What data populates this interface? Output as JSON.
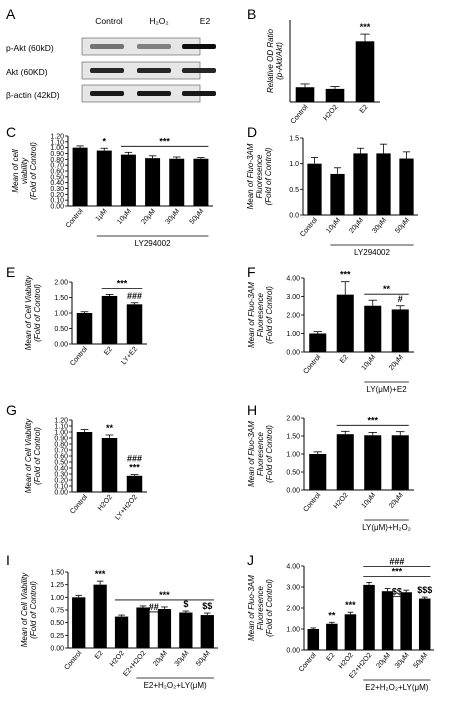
{
  "panel_labels": {
    "A": "A",
    "B": "B",
    "C": "C",
    "D": "D",
    "E": "E",
    "F": "F",
    "G": "G",
    "H": "H",
    "I": "I",
    "J": "J"
  },
  "blot": {
    "lanes": [
      "Control",
      "H₂O₂",
      "E2"
    ],
    "rows": [
      {
        "label": "p-Akt (60kD)",
        "intensities": [
          0.55,
          0.5,
          0.95
        ]
      },
      {
        "label": "Akt (60KD)",
        "intensities": [
          0.85,
          0.85,
          0.85
        ]
      },
      {
        "label": "β-actin (42kD)",
        "intensities": [
          0.9,
          0.9,
          0.9
        ]
      }
    ]
  },
  "chart_data": [
    {
      "id": "B",
      "type": "bar",
      "categories": [
        "Control",
        "H2O2",
        "E2"
      ],
      "values": [
        0.45,
        0.4,
        1.85
      ],
      "errors": [
        0.1,
        0.07,
        0.22
      ],
      "ylim": [
        0,
        2.5
      ],
      "yticks": [],
      "ylabel": [
        "Relative OD Ratio",
        "(p-Akt/Akt)"
      ],
      "annotations": [
        {
          "index": 2,
          "text": "***"
        }
      ],
      "fills": [
        "#000",
        "#000",
        "#000"
      ],
      "bracket": null
    },
    {
      "id": "C",
      "type": "bar",
      "categories": [
        "Control",
        "1μM",
        "10μM",
        "20μM",
        "30μM",
        "50μM"
      ],
      "values": [
        1.0,
        0.95,
        0.88,
        0.82,
        0.81,
        0.81
      ],
      "errors": [
        0.03,
        0.04,
        0.04,
        0.04,
        0.03,
        0.02
      ],
      "ylim": [
        0,
        1.2
      ],
      "yticks": [
        "0.00",
        "0.10",
        "0.20",
        "0.30",
        "0.40",
        "0.50",
        "0.60",
        "0.70",
        "0.80",
        "0.90",
        "1.00",
        "1.10",
        "1.20"
      ],
      "ylabel": [
        "Mean of cell",
        "viability",
        "(Fold of Control)"
      ],
      "annotations": [
        {
          "index": 1,
          "text": "*"
        }
      ],
      "fills": [
        "#000",
        "#000",
        "#000",
        "#000",
        "#000",
        "#000"
      ],
      "line": {
        "from": 2,
        "to": 5,
        "text": "***"
      },
      "bracket": {
        "from": 1,
        "to": 5,
        "text": "LY294002"
      }
    },
    {
      "id": "D",
      "type": "bar",
      "categories": [
        "Control",
        "10μM",
        "20μM",
        "30μM",
        "50μM"
      ],
      "values": [
        1.0,
        0.8,
        1.2,
        1.2,
        1.1
      ],
      "errors": [
        0.12,
        0.12,
        0.1,
        0.18,
        0.13
      ],
      "ylim": [
        0,
        1.5
      ],
      "yticks": [
        "0.0",
        "0.5",
        "1.0",
        "1.5"
      ],
      "ylabel": [
        "Mean of Fluo-3AM",
        "Fluoresence",
        "(Fold of Control)"
      ],
      "annotations": [],
      "fills": [
        "#000",
        "#000",
        "#000",
        "#000",
        "#000"
      ],
      "bracket": {
        "from": 1,
        "to": 4,
        "text": "LY294002"
      }
    },
    {
      "id": "E",
      "type": "bar",
      "categories": [
        "Control",
        "E2",
        "LY+E2"
      ],
      "values": [
        1.0,
        1.55,
        1.28
      ],
      "errors": [
        0.04,
        0.05,
        0.05
      ],
      "ylim": [
        0,
        2.0
      ],
      "yticks": [
        "0.00",
        "0.50",
        "1.00",
        "1.50",
        "2.00"
      ],
      "ylabel": [
        "Mean of Cell Viability",
        "(Fold of Control)"
      ],
      "annotations": [
        {
          "index": 2,
          "text": "###"
        }
      ],
      "line": {
        "from": 1,
        "to": 2,
        "text": "***"
      },
      "fills": [
        "#000",
        "#000",
        "#000"
      ],
      "bracket": null
    },
    {
      "id": "F",
      "type": "bar",
      "categories": [
        "Control",
        "E2",
        "10μM",
        "20μM"
      ],
      "values": [
        1.0,
        3.1,
        2.5,
        2.3
      ],
      "errors": [
        0.1,
        0.7,
        0.3,
        0.2
      ],
      "ylim": [
        0,
        4.0
      ],
      "yticks": [
        "0.00",
        "1.00",
        "2.00",
        "3.00",
        "4.00"
      ],
      "ylabel": [
        "Mean of Fluo-3AM",
        "Fluoresence",
        "(Fold of Control)"
      ],
      "annotations": [
        {
          "index": 1,
          "text": "***"
        },
        {
          "index": 3,
          "text": "#"
        }
      ],
      "line": {
        "from": 2,
        "to": 3,
        "text": "**"
      },
      "fills": [
        "#000",
        "#000",
        "#000",
        "#000"
      ],
      "bracket": {
        "from": 2,
        "to": 3,
        "text": "LY(μM)+E2"
      }
    },
    {
      "id": "G",
      "type": "bar",
      "categories": [
        "Control",
        "H2O2",
        "LY+H2O2"
      ],
      "values": [
        1.0,
        0.9,
        0.27
      ],
      "errors": [
        0.04,
        0.05,
        0.02
      ],
      "ylim": [
        0,
        1.2
      ],
      "yticks": [
        "0.00",
        "0.10",
        "0.20",
        "0.30",
        "0.40",
        "0.50",
        "0.60",
        "0.70",
        "0.80",
        "0.90",
        "1.00",
        "1.10",
        "1.20"
      ],
      "ylabel": [
        "Mean of Cell Viability",
        "(Fold of Control)"
      ],
      "annotations": [
        {
          "index": 1,
          "text": "**"
        },
        {
          "index": 2,
          "text": "***"
        },
        {
          "index": 2,
          "text": "###",
          "offset": 1
        }
      ],
      "fills": [
        "#000",
        "#000",
        "#000"
      ],
      "bracket": null
    },
    {
      "id": "H",
      "type": "bar",
      "categories": [
        "Control",
        "H2O2",
        "10μM",
        "20μM"
      ],
      "values": [
        1.0,
        1.55,
        1.52,
        1.52
      ],
      "errors": [
        0.06,
        0.08,
        0.08,
        0.1
      ],
      "ylim": [
        0,
        2.0
      ],
      "yticks": [
        "0.00",
        "0.50",
        "1.00",
        "1.50",
        "2.00"
      ],
      "ylabel": [
        "Mean of Fluo-3AM",
        "Fluoresence",
        "(Fold of Control)"
      ],
      "annotations": [],
      "line": {
        "from": 1,
        "to": 3,
        "text": "***"
      },
      "fills": [
        "#000",
        "#000",
        "#000",
        "#000"
      ],
      "bracket": {
        "from": 2,
        "to": 3,
        "text": "LY(μM)+H₂O₂"
      }
    },
    {
      "id": "I",
      "type": "bar",
      "categories": [
        "Control",
        "E2",
        "H2O2",
        "E2+H2O2",
        "20μM",
        "30μM",
        "50μM"
      ],
      "values": [
        1.0,
        1.25,
        0.62,
        0.8,
        0.77,
        0.7,
        0.65
      ],
      "errors": [
        0.04,
        0.07,
        0.03,
        0.03,
        0.04,
        0.03,
        0.04
      ],
      "ylim": [
        0,
        1.5
      ],
      "yticks": [
        "0.00",
        "0.25",
        "0.50",
        "0.75",
        "1.00",
        "1.25",
        "1.50"
      ],
      "ylabel": [
        "Mean of Cell Viability",
        "(Fold of Control)"
      ],
      "annotations": [
        {
          "index": 1,
          "text": "***"
        },
        {
          "index": 5,
          "text": "$"
        },
        {
          "index": 6,
          "text": "$$"
        }
      ],
      "line": {
        "from": 2,
        "to": 6,
        "text": "***"
      },
      "line2": {
        "from": 3,
        "to": 4,
        "text": "##"
      },
      "fills": [
        "#000",
        "#000",
        "#000",
        "#000",
        "#000",
        "#000",
        "#000"
      ],
      "bracket": {
        "from": 3,
        "to": 6,
        "text": "E2+H₂O₂+LY(μM)"
      }
    },
    {
      "id": "J",
      "type": "bar",
      "categories": [
        "Control",
        "E2",
        "H2O2",
        "E2+H2O2",
        "20μM",
        "30μM",
        "50μM"
      ],
      "values": [
        1.0,
        1.25,
        1.7,
        3.1,
        2.8,
        2.75,
        2.45
      ],
      "errors": [
        0.05,
        0.07,
        0.1,
        0.12,
        0.13,
        0.1,
        0.07
      ],
      "ylim": [
        0,
        4.0
      ],
      "yticks": [
        "0.00",
        "1.00",
        "2.00",
        "3.00",
        "4.00"
      ],
      "ylabel": [
        "Mean of Fluo-3AM",
        "Fluoresence",
        "(Fold of Control)"
      ],
      "annotations": [
        {
          "index": 1,
          "text": "**"
        },
        {
          "index": 2,
          "text": "***"
        },
        {
          "index": 6,
          "text": "$$$"
        }
      ],
      "line": {
        "from": 3,
        "to": 6,
        "text": "***"
      },
      "line2": {
        "from": 3,
        "to": 6,
        "text": "###"
      },
      "line3": {
        "from": 4,
        "to": 5,
        "text": "$$"
      },
      "fills": [
        "#000",
        "#000",
        "#000",
        "#000",
        "#000",
        "#000",
        "#000"
      ],
      "bracket": {
        "from": 3,
        "to": 6,
        "text": "E2+H₂O₂+LY(μM)"
      }
    }
  ]
}
